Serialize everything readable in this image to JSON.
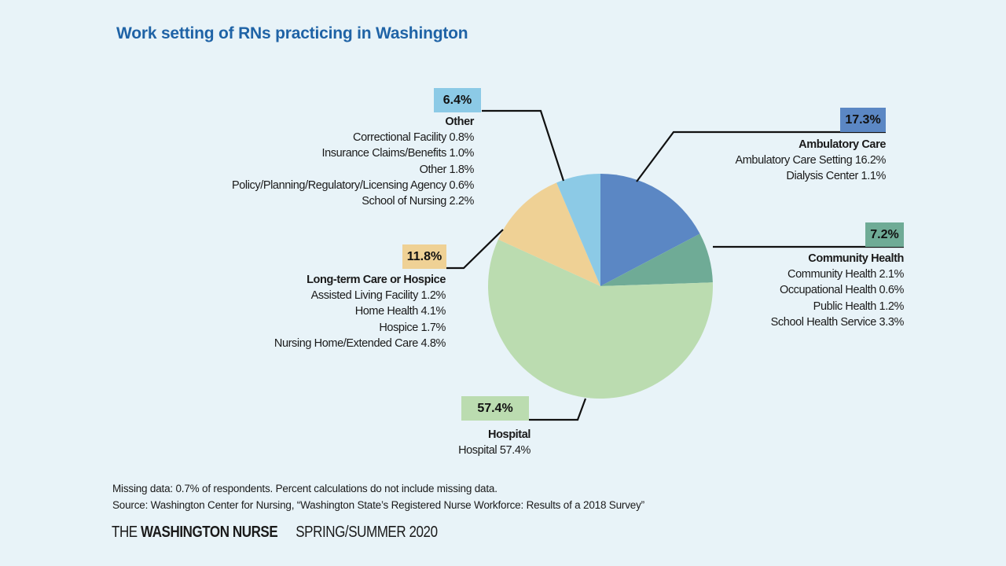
{
  "chart_data": {
    "type": "pie",
    "title": "Work setting of RNs practicing in Washington",
    "start": "top",
    "direction": "clockwise",
    "slices": [
      {
        "name": "Ambulatory Care",
        "value": 17.3,
        "label": "17.3%",
        "color": "#5b87c4",
        "details": [
          "Ambulatory Care Setting 16.2%",
          "Dialysis Center 1.1%"
        ]
      },
      {
        "name": "Community Health",
        "value": 7.2,
        "label": "7.2%",
        "color": "#6fab96",
        "details": [
          "Community Health 2.1%",
          "Occupational Health 0.6%",
          "Public Health 1.2%",
          "School Health Service 3.3%"
        ]
      },
      {
        "name": "Hospital",
        "value": 57.4,
        "label": "57.4%",
        "color": "#bbdcb0",
        "details": [
          "Hospital 57.4%"
        ]
      },
      {
        "name": "Long-term Care or Hospice",
        "value": 11.8,
        "label": "11.8%",
        "color": "#efd195",
        "details": [
          "Assisted Living Facility 1.2%",
          "Home Health 4.1%",
          "Hospice 1.7%",
          "Nursing Home/Extended Care 4.8%"
        ]
      },
      {
        "name": "Other",
        "value": 6.4,
        "label": "6.4%",
        "color": "#8ccae6",
        "details": [
          "Correctional Facility 0.8%",
          "Insurance Claims/Benefits 1.0%",
          "Other 1.8%",
          "Policy/Planning/Regulatory/Licensing Agency 0.6%",
          "School of Nursing 2.2%"
        ]
      }
    ]
  },
  "footnotes": {
    "missing": "Missing data: 0.7% of respondents. Percent calculations do not include missing data.",
    "source": "Source: Washington Center for Nursing, “Washington State’s Registered Nurse Workforce: Results of a 2018 Survey”"
  },
  "masthead": {
    "the": "THE",
    "name": "WASHINGTON NURSE",
    "issue": "SPRING/SUMMER 2020"
  },
  "background": "#e8f3f8",
  "title_color": "#1f63a6"
}
